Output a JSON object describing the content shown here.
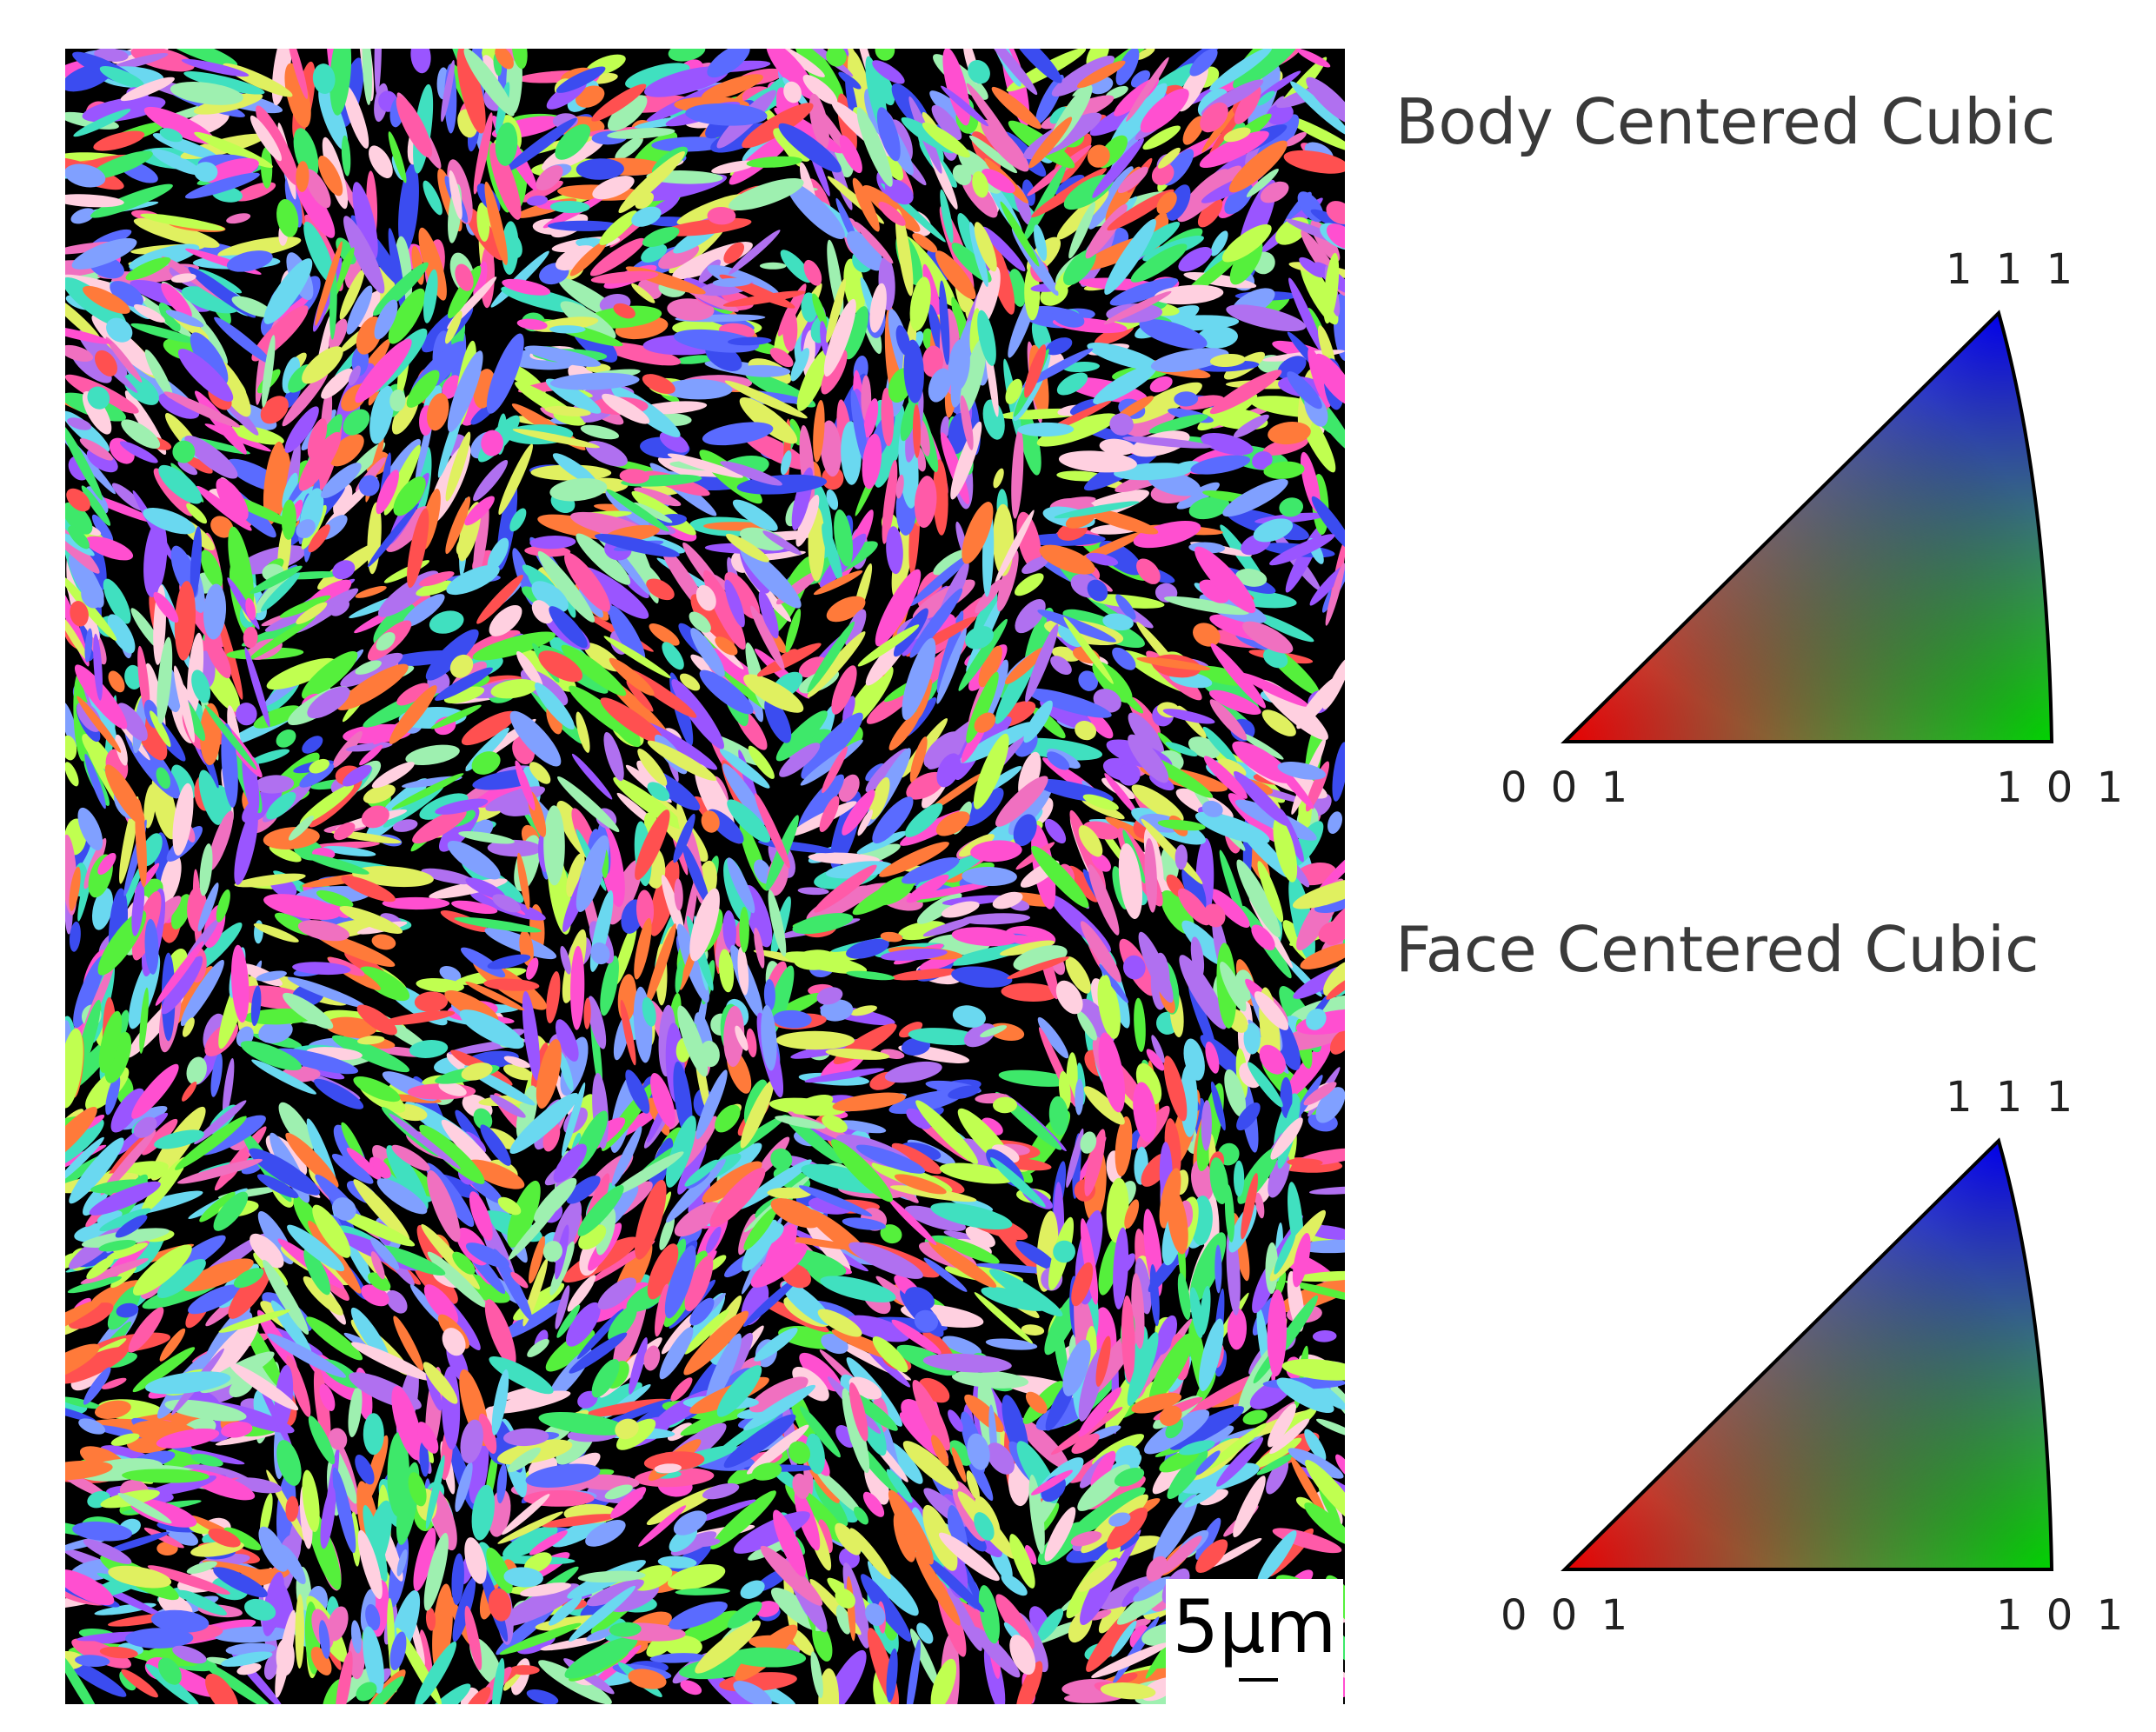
{
  "map": {
    "scale_bar": "5µm"
  },
  "legends": [
    {
      "title": "Body Centered Cubic",
      "corners": {
        "c001": "0 0 1",
        "c101": "1 0 1",
        "c111": "1 1 1"
      }
    },
    {
      "title": "Face Centered Cubic",
      "corners": {
        "c001": "0 0 1",
        "c101": "1 0 1",
        "c111": "1 1 1"
      }
    }
  ]
}
